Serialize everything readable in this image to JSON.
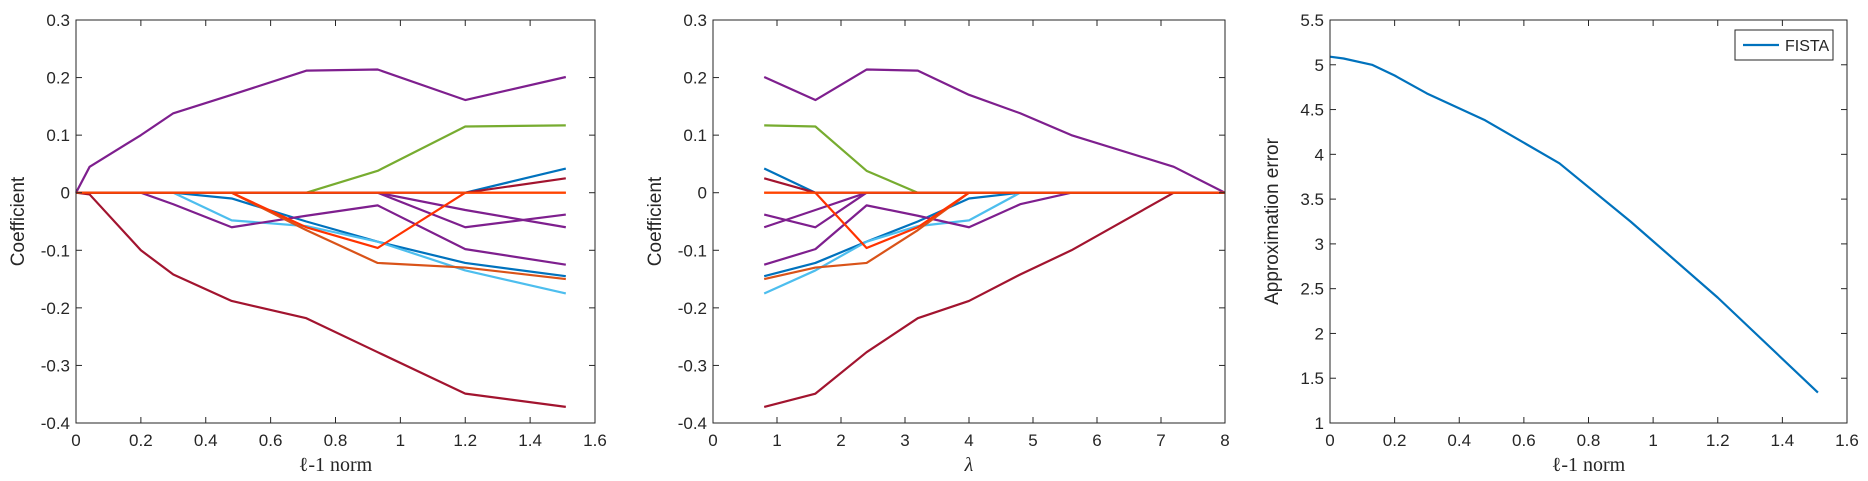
{
  "chart_data": [
    {
      "type": "line",
      "xlabel": "ℓ-1 norm",
      "ylabel": "Coefficient",
      "xlim": [
        0,
        1.6
      ],
      "ylim": [
        -0.4,
        0.3
      ],
      "xticks": [
        "0",
        "0.2",
        "0.4",
        "0.6",
        "0.8",
        "1",
        "1.2",
        "1.4",
        "1.6"
      ],
      "yticks": [
        "-0.4",
        "-0.3",
        "-0.2",
        "-0.1",
        "0",
        "0.1",
        "0.2",
        "0.3"
      ],
      "x": [
        0,
        0.042,
        0.2,
        0.3,
        0.48,
        0.71,
        0.93,
        1.2,
        1.51
      ],
      "series": [
        {
          "color": "#7E1F8E",
          "values": [
            0,
            0.045,
            0.1,
            0.138,
            0.17,
            0.212,
            0.214,
            0.161,
            0.201
          ]
        },
        {
          "color": "#77AC30",
          "values": [
            0,
            0,
            0,
            0,
            0,
            0,
            0.038,
            0.115,
            0.117
          ]
        },
        {
          "color": "#0072BD",
          "values": [
            0,
            0,
            0,
            0,
            -0.01,
            -0.05,
            -0.085,
            -0.122,
            -0.145
          ]
        },
        {
          "color": "#4DBEEE",
          "values": [
            0,
            0,
            0,
            0,
            -0.048,
            -0.058,
            -0.085,
            -0.135,
            -0.175
          ]
        },
        {
          "color": "#7E1F8E",
          "values": [
            0,
            0,
            0,
            -0.02,
            -0.06,
            -0.04,
            -0.022,
            -0.098,
            -0.125
          ]
        },
        {
          "color": "#7E1F8E",
          "values": [
            0,
            0,
            0,
            0,
            0,
            0,
            0,
            -0.03,
            -0.06
          ]
        },
        {
          "color": "#7E1F8E",
          "values": [
            0,
            0,
            0,
            0,
            0,
            0,
            0,
            -0.06,
            -0.038
          ]
        },
        {
          "color": "#D95319",
          "values": [
            0,
            0,
            0,
            0,
            0,
            -0.065,
            -0.122,
            -0.13,
            -0.15
          ]
        },
        {
          "color": "#FF3300",
          "values": [
            0,
            0,
            0,
            0,
            0,
            -0.06,
            -0.096,
            0,
            0
          ]
        },
        {
          "color": "#0072BD",
          "values": [
            0,
            0,
            0,
            0,
            0,
            0,
            0,
            0,
            0.042
          ]
        },
        {
          "color": "#A2142F",
          "values": [
            0,
            0,
            0,
            0,
            0,
            0,
            0,
            0,
            0.025
          ]
        },
        {
          "color": "#A2142F",
          "values": [
            0,
            -0.003,
            -0.1,
            -0.142,
            -0.188,
            -0.218,
            -0.277,
            -0.349,
            -0.372
          ]
        },
        {
          "color": "#FF4500",
          "values": [
            0,
            0,
            0,
            0,
            0,
            0,
            0,
            0,
            0
          ]
        }
      ]
    },
    {
      "type": "line",
      "xlabel": "λ",
      "ylabel": "Coefficient",
      "xlim": [
        0,
        8
      ],
      "ylim": [
        -0.4,
        0.3
      ],
      "xticks": [
        "0",
        "1",
        "2",
        "3",
        "4",
        "5",
        "6",
        "7",
        "8"
      ],
      "yticks": [
        "-0.4",
        "-0.3",
        "-0.2",
        "-0.1",
        "0",
        "0.1",
        "0.2",
        "0.3"
      ],
      "x": [
        0.8,
        1.6,
        2.4,
        3.2,
        4.0,
        4.8,
        5.6,
        7.2,
        8.0
      ],
      "series": [
        {
          "color": "#7E1F8E",
          "values": [
            0.201,
            0.161,
            0.214,
            0.212,
            0.17,
            0.138,
            0.1,
            0.045,
            0
          ]
        },
        {
          "color": "#77AC30",
          "values": [
            0.117,
            0.115,
            0.038,
            0,
            0,
            0,
            0,
            0,
            0
          ]
        },
        {
          "color": "#0072BD",
          "values": [
            -0.145,
            -0.122,
            -0.085,
            -0.05,
            -0.01,
            0,
            0,
            0,
            0
          ]
        },
        {
          "color": "#4DBEEE",
          "values": [
            -0.175,
            -0.135,
            -0.085,
            -0.058,
            -0.048,
            0,
            0,
            0,
            0
          ]
        },
        {
          "color": "#7E1F8E",
          "values": [
            -0.125,
            -0.098,
            -0.022,
            -0.04,
            -0.06,
            -0.02,
            0,
            0,
            0
          ]
        },
        {
          "color": "#7E1F8E",
          "values": [
            -0.06,
            -0.03,
            0,
            0,
            0,
            0,
            0,
            0,
            0
          ]
        },
        {
          "color": "#7E1F8E",
          "values": [
            -0.038,
            -0.06,
            0,
            0,
            0,
            0,
            0,
            0,
            0
          ]
        },
        {
          "color": "#D95319",
          "values": [
            -0.15,
            -0.13,
            -0.122,
            -0.065,
            0,
            0,
            0,
            0,
            0
          ]
        },
        {
          "color": "#FF3300",
          "values": [
            0,
            0,
            -0.096,
            -0.06,
            0,
            0,
            0,
            0,
            0
          ]
        },
        {
          "color": "#0072BD",
          "values": [
            0.042,
            0,
            0,
            0,
            0,
            0,
            0,
            0,
            0
          ]
        },
        {
          "color": "#A2142F",
          "values": [
            0.025,
            0,
            0,
            0,
            0,
            0,
            0,
            0,
            0
          ]
        },
        {
          "color": "#A2142F",
          "values": [
            -0.372,
            -0.349,
            -0.277,
            -0.218,
            -0.188,
            -0.142,
            -0.1,
            0,
            0
          ]
        },
        {
          "color": "#FF4500",
          "values": [
            0,
            0,
            0,
            0,
            0,
            0,
            0,
            0,
            0
          ]
        }
      ]
    },
    {
      "type": "line",
      "xlabel": "ℓ-1 norm",
      "ylabel": "Approximation error",
      "xlim": [
        0,
        1.6
      ],
      "ylim": [
        1,
        5.5
      ],
      "xticks": [
        "0",
        "0.2",
        "0.4",
        "0.6",
        "0.8",
        "1",
        "1.2",
        "1.4",
        "1.6"
      ],
      "yticks": [
        "1",
        "1.5",
        "2",
        "2.5",
        "3",
        "3.5",
        "4",
        "4.5",
        "5",
        "5.5"
      ],
      "legend": "top-right",
      "x": [
        0,
        0.042,
        0.13,
        0.2,
        0.3,
        0.48,
        0.71,
        0.93,
        1.2,
        1.51
      ],
      "series": [
        {
          "name": "FISTA",
          "color": "#0072BD",
          "values": [
            5.09,
            5.07,
            5.0,
            4.88,
            4.68,
            4.38,
            3.9,
            3.25,
            2.4,
            1.34
          ]
        }
      ]
    }
  ]
}
